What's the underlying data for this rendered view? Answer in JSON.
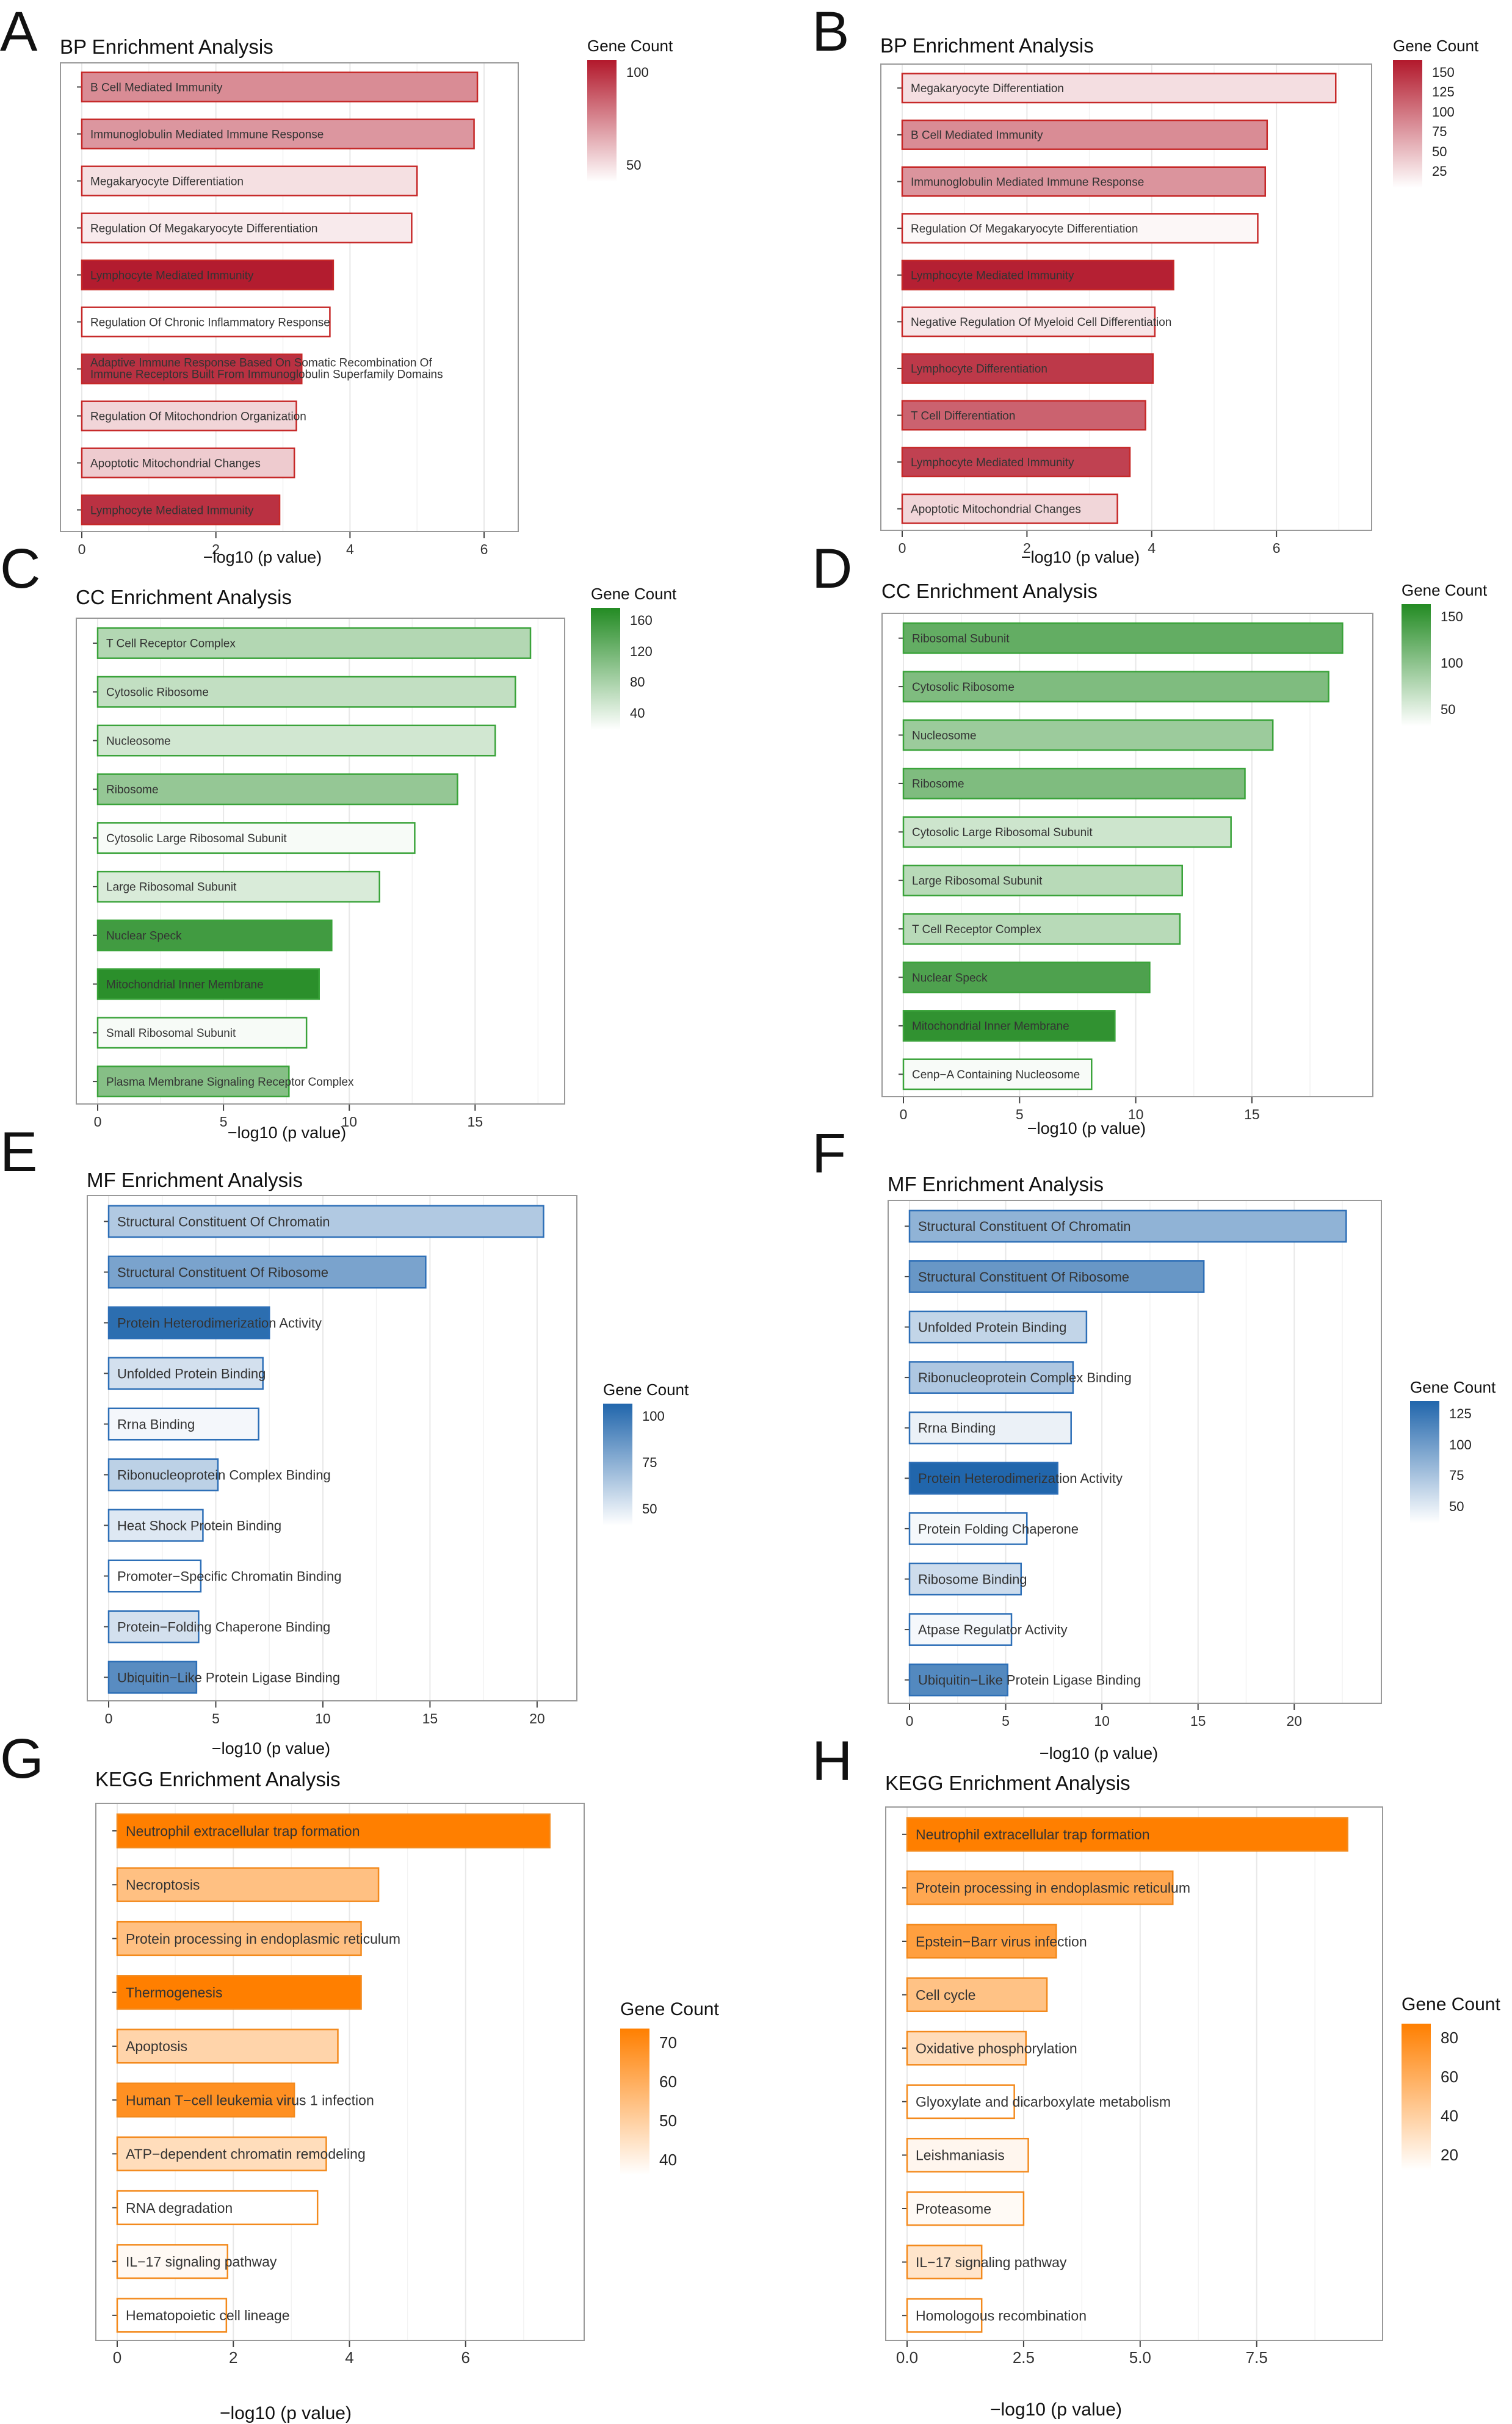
{
  "x_axis_label": "−log10 (p value)",
  "legend_title": "Gene Count",
  "chart_data": [
    {
      "letter": "A",
      "title": "BP Enrichment Analysis",
      "type": "bar",
      "orientation": "horizontal",
      "xlim": [
        0,
        6.3
      ],
      "xticks": [
        0,
        2,
        4,
        6
      ],
      "colors": {
        "low": "#ffffff",
        "high": "#b2182b",
        "stroke": "#c62828"
      },
      "legend_ticks": [
        100,
        50
      ],
      "count_range": [
        20,
        130
      ],
      "categories": [
        "B Cell Mediated Immunity",
        "Immunoglobulin Mediated Immune Response",
        "Megakaryocyte Differentiation",
        "Regulation Of Megakaryocyte Differentiation",
        "Lymphocyte Mediated Immunity",
        "Regulation Of Chronic Inflammatory Response",
        "Adaptive Immune Response Based On Somatic Recombination Of Immune Receptors Built From Immunoglobulin Superfamily Domains",
        "Regulation Of Mitochondrion Organization",
        "Apoptotic Mitochondrial Changes",
        "Lymphocyte Mediated Immunity"
      ],
      "values": [
        5.9,
        5.85,
        5.0,
        4.92,
        3.75,
        3.7,
        3.28,
        3.2,
        3.17,
        2.95
      ],
      "counts": [
        75,
        70,
        35,
        30,
        128,
        20,
        118,
        40,
        45,
        118
      ]
    },
    {
      "letter": "B",
      "title": "BP Enrichment Analysis",
      "type": "bar",
      "orientation": "horizontal",
      "xlim": [
        0,
        7.3
      ],
      "xticks": [
        0,
        2,
        4,
        6
      ],
      "colors": {
        "low": "#ffffff",
        "high": "#b2182b",
        "stroke": "#c62828"
      },
      "legend_ticks": [
        150,
        125,
        100,
        75,
        50,
        25
      ],
      "count_range": [
        20,
        160
      ],
      "categories": [
        "Megakaryocyte Differentiation",
        "B Cell Mediated Immunity",
        "Immunoglobulin Mediated Immune Response",
        "Regulation Of Megakaryocyte Differentiation",
        "Lymphocyte Mediated Immunity",
        "Negative Regulation Of Myeloid Cell Differentiation",
        "Lymphocyte Differentiation",
        "T Cell Differentiation",
        "Lymphocyte Mediated Immunity",
        "Apoptotic Mitochondrial Changes"
      ],
      "values": [
        6.95,
        5.85,
        5.82,
        5.7,
        4.35,
        4.05,
        4.02,
        3.9,
        3.65,
        3.45
      ],
      "counts": [
        40,
        90,
        85,
        25,
        155,
        35,
        140,
        115,
        135,
        45
      ]
    },
    {
      "letter": "C",
      "title": "CC Enrichment Analysis",
      "type": "bar",
      "orientation": "horizontal",
      "xlim": [
        0,
        18
      ],
      "xticks": [
        0,
        5,
        10,
        15
      ],
      "colors": {
        "low": "#ffffff",
        "high": "#238b23",
        "stroke": "#3aa33a"
      },
      "legend_ticks": [
        160,
        120,
        80,
        40
      ],
      "count_range": [
        30,
        175
      ],
      "categories": [
        "T Cell Receptor Complex",
        "Cytosolic Ribosome",
        "Nucleosome",
        "Ribosome",
        "Cytosolic Large Ribosomal Subunit",
        "Large Ribosomal Subunit",
        "Nuclear Speck",
        "Mitochondrial Inner Membrane",
        "Small Ribosomal Subunit",
        "Plasma Membrane Signaling Receptor Complex"
      ],
      "values": [
        17.2,
        16.6,
        15.8,
        14.3,
        12.6,
        11.2,
        9.3,
        8.8,
        8.3,
        7.6
      ],
      "counts": [
        80,
        70,
        60,
        100,
        35,
        55,
        155,
        170,
        35,
        110
      ]
    },
    {
      "letter": "D",
      "title": "CC Enrichment Analysis",
      "type": "bar",
      "orientation": "horizontal",
      "xlim": [
        0,
        19.6
      ],
      "xticks": [
        0,
        5,
        10,
        15
      ],
      "colors": {
        "low": "#ffffff",
        "high": "#238b23",
        "stroke": "#3aa33a"
      },
      "legend_ticks": [
        150,
        100,
        50
      ],
      "count_range": [
        20,
        175
      ],
      "categories": [
        "Ribosomal Subunit",
        "Cytosolic Ribosome",
        "Nucleosome",
        "Ribosome",
        "Cytosolic Large Ribosomal Subunit",
        "Large Ribosomal Subunit",
        "T Cell Receptor Complex",
        "Nuclear Speck",
        "Mitochondrial Inner Membrane",
        "Cenp−A Containing Nucleosome"
      ],
      "values": [
        18.9,
        18.3,
        15.9,
        14.7,
        14.1,
        12.0,
        11.9,
        10.6,
        9.1,
        8.1
      ],
      "counts": [
        130,
        110,
        90,
        110,
        55,
        70,
        70,
        145,
        165,
        25
      ]
    },
    {
      "letter": "E",
      "title": "MF Enrichment Analysis",
      "type": "bar",
      "orientation": "horizontal",
      "xlim": [
        0,
        21.2
      ],
      "xticks": [
        0,
        5,
        10,
        15,
        20
      ],
      "colors": {
        "low": "#ffffff",
        "high": "#2166ac",
        "stroke": "#2d6fb7"
      },
      "legend_ticks": [
        100,
        75,
        50
      ],
      "count_range": [
        25,
        125
      ],
      "categories": [
        "Structural Constituent Of Chromatin",
        "Structural Constituent Of Ribosome",
        "Protein Heterodimerization Activity",
        "Unfolded Protein Binding",
        "Rrna Binding",
        "Ribonucleoprotein Complex Binding",
        "Heat Shock Protein Binding",
        "Promoter−Specific Chromatin Binding",
        "Protein−Folding Chaperone Binding",
        "Ubiquitin−Like Protein Ligase Binding"
      ],
      "values": [
        20.3,
        14.8,
        7.5,
        7.2,
        7.0,
        5.1,
        4.4,
        4.3,
        4.2,
        4.1
      ],
      "counts": [
        60,
        85,
        120,
        45,
        30,
        55,
        40,
        25,
        45,
        100
      ]
    },
    {
      "letter": "F",
      "title": "MF Enrichment Analysis",
      "type": "bar",
      "orientation": "horizontal",
      "xlim": [
        0,
        23.8
      ],
      "xticks": [
        0,
        5,
        10,
        15,
        20
      ],
      "colors": {
        "low": "#ffffff",
        "high": "#2166ac",
        "stroke": "#2d6fb7"
      },
      "legend_ticks": [
        125,
        100,
        75,
        50
      ],
      "count_range": [
        25,
        135
      ],
      "categories": [
        "Structural Constituent Of Chromatin",
        "Structural Constituent Of Ribosome",
        "Unfolded Protein Binding",
        "Ribonucleoprotein Complex Binding",
        "Rrna Binding",
        "Protein Heterodimerization Activity",
        "Protein Folding Chaperone",
        "Ribosome Binding",
        "Atpase Regulator Activity",
        "Ubiquitin−Like Protein Ligase Binding"
      ],
      "values": [
        22.7,
        15.3,
        9.2,
        8.5,
        8.4,
        7.7,
        6.1,
        5.8,
        5.3,
        5.1
      ],
      "counts": [
        80,
        100,
        55,
        65,
        35,
        135,
        30,
        50,
        30,
        110
      ]
    },
    {
      "letter": "G",
      "title": "KEGG Enrichment Analysis",
      "type": "bar",
      "orientation": "horizontal",
      "xlim": [
        0,
        7.8
      ],
      "xticks": [
        0,
        2,
        4,
        6
      ],
      "colors": {
        "low": "#ffffff",
        "high": "#ff7f00",
        "stroke": "#f38a1d"
      },
      "legend_ticks": [
        70,
        60,
        50,
        40
      ],
      "count_range": [
        33,
        78
      ],
      "categories": [
        "Neutrophil extracellular trap formation",
        "Necroptosis",
        "Protein processing in endoplasmic reticulum",
        "Thermogenesis",
        "Apoptosis",
        "Human T−cell leukemia virus 1 infection",
        "ATP−dependent chromatin remodeling",
        "RNA degradation",
        "IL−17 signaling pathway",
        "Hematopoietic cell lineage"
      ],
      "values": [
        7.45,
        4.5,
        4.2,
        4.2,
        3.8,
        3.05,
        3.6,
        3.45,
        1.9,
        1.88
      ],
      "counts": [
        78,
        55,
        55,
        78,
        48,
        72,
        45,
        33,
        35,
        33
      ]
    },
    {
      "letter": "H",
      "title": "KEGG Enrichment Analysis",
      "type": "bar",
      "orientation": "horizontal",
      "xlim": [
        0,
        9.9
      ],
      "xticks": [
        0.0,
        2.5,
        5.0,
        7.5
      ],
      "tick_labels": [
        "0.0",
        "2.5",
        "5.0",
        "7.5"
      ],
      "colors": {
        "low": "#ffffff",
        "high": "#ff7f00",
        "stroke": "#f38a1d"
      },
      "legend_ticks": [
        80,
        60,
        40,
        20
      ],
      "count_range": [
        15,
        88
      ],
      "categories": [
        "Neutrophil extracellular trap formation",
        "Protein processing in endoplasmic reticulum",
        "Epstein−Barr virus infection",
        "Cell cycle",
        "Oxidative phosphorylation",
        "Glyoxylate and dicarboxylate metabolism",
        "Leishmaniasis",
        "Proteasome",
        "IL−17 signaling pathway",
        "Homologous recombination"
      ],
      "values": [
        9.45,
        5.7,
        3.2,
        3.0,
        2.55,
        2.3,
        2.6,
        2.5,
        1.6,
        1.6
      ],
      "counts": [
        88,
        65,
        70,
        50,
        35,
        15,
        20,
        18,
        30,
        15
      ]
    }
  ]
}
